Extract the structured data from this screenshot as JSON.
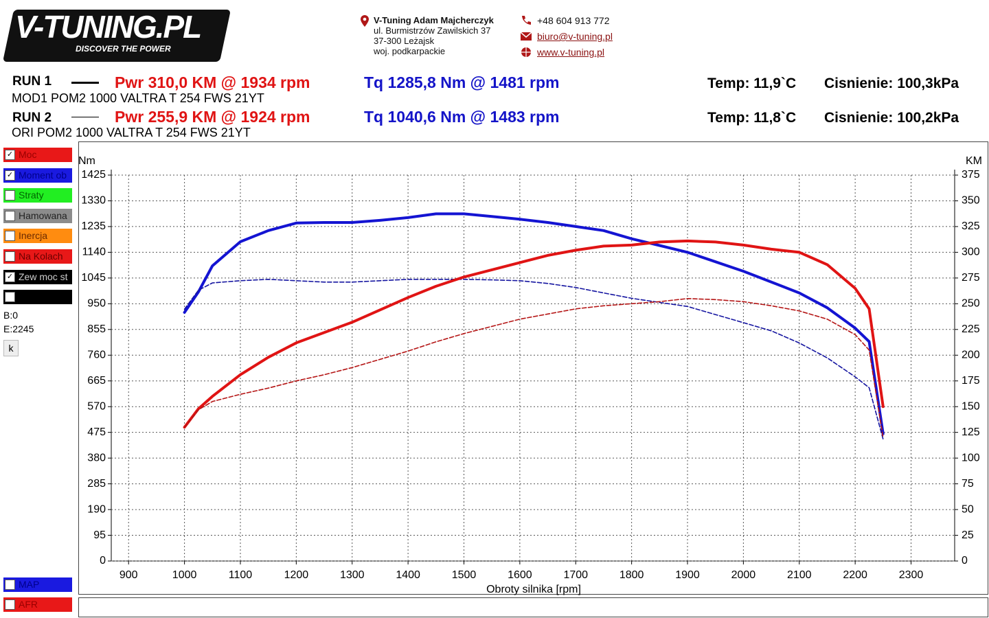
{
  "header": {
    "logo": "V-TUNING.PL",
    "tagline": "DISCOVER THE POWER",
    "company": "V-Tuning Adam Majcherczyk",
    "address": [
      "ul. Burmistrzów Zawilskich 37",
      "37-300 Leżajsk",
      "woj. podkarpackie"
    ],
    "phone": "+48 604 913 772",
    "email": "biuro@v-tuning.pl",
    "web": "www.v-tuning.pl"
  },
  "runs": [
    {
      "label": "RUN 1",
      "pwr": "Pwr  310,0 KM @ 1934 rpm",
      "tq": "Tq 1285,8 Nm @ 1481 rpm",
      "temp": "Temp: 11,9`C",
      "pressure": "Cisnienie: 100,3kPa",
      "desc": "MOD1 POM2 1000 VALTRA T 254 FWS 21YT"
    },
    {
      "label": "RUN 2",
      "pwr": "Pwr  255,9 KM @ 1924 rpm",
      "tq": "Tq 1040,6 Nm @ 1483 rpm",
      "temp": "Temp: 11,8`C",
      "pressure": "Cisnienie: 100,2kPa",
      "desc": "ORI POM2 1000 VALTRA T 254 FWS 21YT"
    }
  ],
  "panel": {
    "items": [
      {
        "label": "Moc",
        "color": "#e81818",
        "text_color": "#9a0000",
        "checked": true
      },
      {
        "label": "Moment ob",
        "color": "#1a1ae0",
        "text_color": "#00008a",
        "checked": true
      },
      {
        "label": "Straty",
        "color": "#22ee22",
        "text_color": "#006600",
        "checked": false
      },
      {
        "label": "Hamowana",
        "color": "#8c8c8c",
        "text_color": "#222222",
        "checked": false
      },
      {
        "label": "Inercja",
        "color": "#ff8c10",
        "text_color": "#6a2a00",
        "checked": false
      },
      {
        "label": "Na Kolach",
        "color": "#e81818",
        "text_color": "#6a0000",
        "checked": false
      },
      {
        "label": "Zew moc st",
        "color": "#000000",
        "text_color": "#cccccc",
        "checked": true
      },
      {
        "label": null,
        "color": "#000000",
        "text_color": "#ffffff",
        "checked": false
      }
    ],
    "b": "B:0",
    "e": "E:2245",
    "button": "k",
    "bottom_items": [
      {
        "label": "MAP",
        "color": "#1a1ae0",
        "text_color": "#00008a",
        "checked": false
      },
      {
        "label": "AFR",
        "color": "#e81818",
        "text_color": "#9a0000",
        "checked": false
      }
    ]
  },
  "chart_data": {
    "type": "line",
    "x_label": "Obroty silnika [rpm]",
    "y_label": "Nm",
    "y2_label": "KM",
    "xlim": [
      869,
      2378
    ],
    "xticks": [
      900,
      1000,
      1100,
      1200,
      1300,
      1400,
      1500,
      1600,
      1700,
      1800,
      1900,
      2000,
      2100,
      2200,
      2300
    ],
    "ylim": [
      0,
      1425
    ],
    "yticks": [
      0,
      95,
      190,
      285,
      380,
      475,
      570,
      665,
      760,
      855,
      950,
      1045,
      1140,
      1235,
      1330,
      1425
    ],
    "y2lim": [
      0,
      375
    ],
    "y2ticks": [
      0,
      25,
      50,
      75,
      100,
      125,
      150,
      175,
      200,
      225,
      250,
      275,
      300,
      325,
      350,
      375
    ],
    "grid": true,
    "x": [
      1000,
      1025,
      1050,
      1100,
      1150,
      1200,
      1250,
      1300,
      1350,
      1400,
      1450,
      1500,
      1550,
      1600,
      1650,
      1700,
      1750,
      1800,
      1850,
      1900,
      1950,
      2000,
      2050,
      2100,
      2150,
      2200,
      2225,
      2250
    ],
    "series": [
      {
        "color": "#1414d2",
        "dashed": false,
        "axis": "y",
        "values": [
          918,
          994,
          1090,
          1179,
          1220,
          1248,
          1250,
          1250,
          1258,
          1268,
          1282,
          1282,
          1272,
          1262,
          1250,
          1235,
          1220,
          1190,
          1165,
          1140,
          1105,
          1070,
          1030,
          990,
          935,
          860,
          810,
          470
        ]
      },
      {
        "color": "#1414a0",
        "dashed": true,
        "axis": "y",
        "values": [
          930,
          1000,
          1027,
          1035,
          1040,
          1035,
          1030,
          1030,
          1035,
          1040,
          1040,
          1040,
          1038,
          1035,
          1025,
          1010,
          990,
          970,
          955,
          940,
          910,
          880,
          850,
          805,
          750,
          680,
          640,
          450
        ]
      },
      {
        "color": "#e01414",
        "dashed": false,
        "axis": "y2",
        "values": [
          130,
          148,
          160,
          181,
          198,
          212,
          222,
          232,
          244,
          256,
          267,
          276,
          283,
          290,
          297,
          302,
          306,
          307,
          310,
          311,
          310,
          307,
          303,
          300,
          288,
          265,
          245,
          150
        ]
      },
      {
        "color": "#b41414",
        "dashed": true,
        "axis": "y2",
        "values": [
          130,
          147,
          155,
          162,
          168,
          175,
          181,
          188,
          196,
          204,
          213,
          221,
          228,
          235,
          240,
          245,
          248,
          250,
          252,
          255,
          254,
          252,
          248,
          243,
          235,
          220,
          205,
          120
        ]
      }
    ]
  }
}
